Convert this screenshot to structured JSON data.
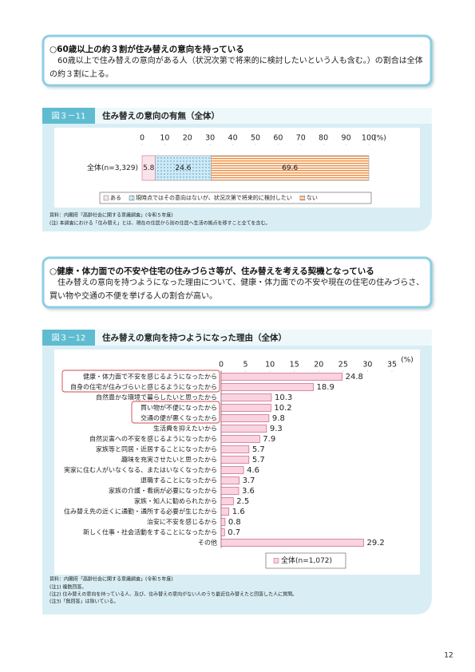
{
  "box1": {
    "title": "○60歳以上の約３割が住み替えの意向を持っている",
    "text": "60歳以上で住み替えの意向がある人（状況次第で将来的に検討したいという人も含む。）の割合は全体の約３割に上る。"
  },
  "figure1": {
    "label": "図３－11",
    "source": "資料：内閣府「高齢社会に関する意識調査」(令和５年度)",
    "note": "(注) 本調査における「住み替え」とは、現在の住居から別の住居へ生活の拠点を移すこと全てを含む。"
  },
  "box2": {
    "title": "○健康・体力面での不安や住宅の住みづらさ等が、住み替えを考える契機となっている",
    "text": "住み替えの意向を持つようになった理由について、健康・体力面での不安や現在の住宅の住みづらさ、買い物や交通の不便を挙げる人の割合が高い。"
  },
  "figure2": {
    "label": "図３－12",
    "source": "資料：内閣府「高齢社会に関する意識調査」(令和５年度)",
    "notes": [
      "(注1) 複数回答。",
      "(注2) 住み替えの意向を持っている人、及び、住み替えの意向がない人のうち最近住み替えたと回答した人に質問。",
      "(注3)「無回答」は除いている。"
    ]
  },
  "page_number": "12",
  "chart_data": [
    {
      "type": "stacked_bar",
      "title": "住み替えの意向の有無（全体）",
      "unit": "(%)",
      "categories": [
        "全体(n=3,329)"
      ],
      "series": [
        {
          "name": "ある",
          "color": "#fbe3ea",
          "values": [
            5.8
          ]
        },
        {
          "name": "現時点ではその意向はないが、状況次第で将来的に検討したい",
          "color": "#cfeaf6",
          "pattern": "dots",
          "values": [
            24.6
          ]
        },
        {
          "name": "ない",
          "color": "#ee8a3c",
          "pattern": "stripes",
          "values": [
            69.6
          ]
        }
      ],
      "xlim": [
        0,
        100
      ],
      "xticks": [
        0,
        10,
        20,
        30,
        40,
        50,
        60,
        70,
        80,
        90,
        100
      ]
    },
    {
      "type": "bar",
      "title": "住み替えの意向を持つようになった理由（全体）",
      "unit": "(%)",
      "categories": [
        "健康・体力面で不安を感じるようになったから",
        "自身の住宅が住みづらいと感じるようになったから",
        "自然豊かな環境で暮らしたいと思ったから",
        "買い物が不便になったから",
        "交通の便が悪くなったから",
        "生活費を抑えたいから",
        "自然災害への不安を感じるようになったから",
        "家族等と同居・近居することになったから",
        "趣味を充実させたいと思ったから",
        "実家に住む人がいなくなる、またはいなくなったから",
        "退職することになったから",
        "家族の介護・看病が必要になったから",
        "家族・知人に勧められたから",
        "住み替え先の近くに通勤・通所する必要が生じたから",
        "治安に不安を感じるから",
        "新しく仕事・社会活動をすることになったから",
        "その他"
      ],
      "series": [
        {
          "name": "全体(n=1,072)",
          "color": "#f9d3df",
          "values": [
            24.8,
            18.9,
            10.3,
            10.2,
            9.8,
            9.3,
            7.9,
            5.7,
            5.7,
            4.6,
            3.7,
            3.6,
            2.5,
            1.6,
            0.8,
            0.7,
            29.2
          ]
        }
      ],
      "xlim": [
        0,
        35
      ],
      "xticks": [
        0,
        5,
        10,
        15,
        20,
        25,
        30,
        35
      ]
    }
  ]
}
